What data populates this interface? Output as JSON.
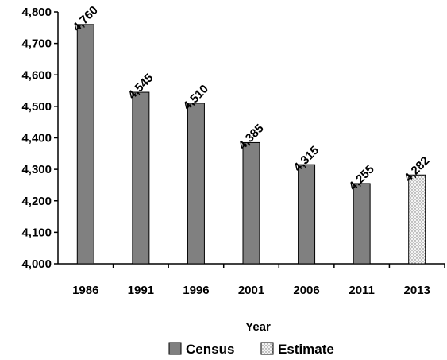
{
  "chart_data": {
    "type": "bar",
    "title": "",
    "xlabel": "Year",
    "ylabel": "",
    "ylim": [
      4000,
      4800
    ],
    "yticks": [
      4000,
      4100,
      4200,
      4300,
      4400,
      4500,
      4600,
      4700,
      4800
    ],
    "ytick_labels": [
      "4,000",
      "4,100",
      "4,200",
      "4,300",
      "4,400",
      "4,500",
      "4,600",
      "4,700",
      "4,800"
    ],
    "categories": [
      "1986",
      "1991",
      "1996",
      "2001",
      "2006",
      "2011",
      "2013"
    ],
    "values": [
      4760,
      4545,
      4510,
      4385,
      4315,
      4255,
      4282
    ],
    "data_labels": [
      "4,760",
      "4,545",
      "4,510",
      "4,385",
      "4,315",
      "4,255",
      "4,282"
    ],
    "kinds": [
      "Census",
      "Census",
      "Census",
      "Census",
      "Census",
      "Census",
      "Estimate"
    ],
    "legend": [
      {
        "name": "Census",
        "color": "#808080",
        "pattern": "solid"
      },
      {
        "name": "Estimate",
        "color": "#f2f2f2",
        "pattern": "dotted"
      }
    ],
    "legend_position": "bottom",
    "grid": false
  }
}
